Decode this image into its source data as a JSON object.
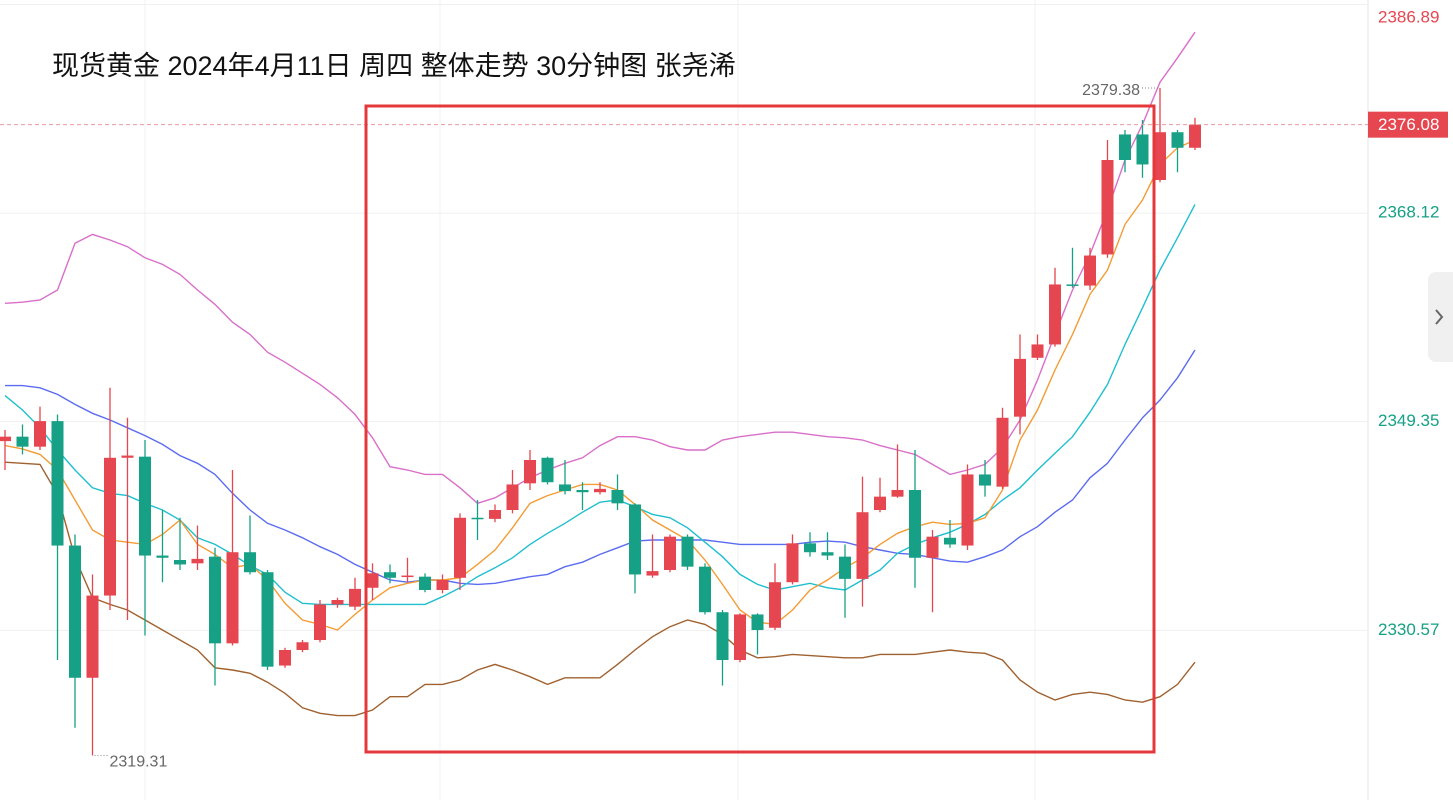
{
  "chart_data": {
    "type": "candlestick",
    "title": "现货黄金 2024年4月11日 周四  整体走势 30分钟图  张尧浠",
    "ylim": [
      2315.3,
      2387.3
    ],
    "yticks": [
      2330.57,
      2349.35,
      2368.12,
      2386.89
    ],
    "grid": true,
    "up_color": "#e5464f",
    "down_color": "#16a085",
    "open": [
      2347.6,
      2348.0,
      2347.1,
      2349.4,
      2338.2,
      2326.3,
      2333.7,
      2346.1,
      2346.2,
      2337.3,
      2336.9,
      2336.6,
      2337.2,
      2329.4,
      2337.6,
      2335.8,
      2327.4,
      2328.8,
      2329.7,
      2332.9,
      2332.7,
      2334.4,
      2335.8,
      2335.4,
      2335.4,
      2334.2,
      2335.3,
      2340.7,
      2340.6,
      2341.4,
      2343.8,
      2346.1,
      2343.7,
      2343.2,
      2343.0,
      2343.2,
      2341.9,
      2335.5,
      2336.0,
      2339.0,
      2336.3,
      2332.2,
      2327.9,
      2332.0,
      2330.8,
      2334.9,
      2338.4,
      2337.6,
      2337.2,
      2335.2,
      2341.4,
      2342.6,
      2343.2,
      2337.1,
      2338.9,
      2338.2,
      2344.6,
      2343.5,
      2349.8,
      2355.1,
      2356.3,
      2361.7,
      2361.6,
      2364.4,
      2375.2,
      2375.2,
      2371.1,
      2375.4,
      2374.0
    ],
    "high": [
      2348.6,
      2349.1,
      2350.7,
      2350.0,
      2339.2,
      2335.6,
      2352.4,
      2349.7,
      2347.7,
      2341.4,
      2340.7,
      2340.0,
      2338.0,
      2345.0,
      2340.9,
      2336.0,
      2329.0,
      2329.7,
      2333.3,
      2333.5,
      2335.3,
      2336.6,
      2336.5,
      2337.1,
      2335.7,
      2335.6,
      2341.1,
      2342.3,
      2341.9,
      2345.0,
      2346.8,
      2346.2,
      2345.9,
      2343.9,
      2343.9,
      2344.6,
      2342.0,
      2339.2,
      2339.2,
      2339.2,
      2336.6,
      2332.4,
      2332.1,
      2332.1,
      2336.6,
      2339.2,
      2339.4,
      2339.4,
      2338.3,
      2344.4,
      2344.3,
      2347.3,
      2346.8,
      2339.6,
      2340.5,
      2345.5,
      2345.9,
      2350.6,
      2357.2,
      2357.2,
      2363.2,
      2365.0,
      2365.0,
      2374.7,
      2375.6,
      2376.5,
      2379.38,
      2375.6,
      2376.7
    ],
    "low": [
      2345.0,
      2346.4,
      2346.8,
      2327.9,
      2321.8,
      2319.31,
      2332.4,
      2331.5,
      2330.1,
      2334.9,
      2336.0,
      2336.0,
      2325.6,
      2329.2,
      2335.6,
      2327.0,
      2327.2,
      2328.6,
      2329.5,
      2332.6,
      2332.4,
      2333.3,
      2334.8,
      2334.9,
      2334.0,
      2333.9,
      2334.2,
      2338.7,
      2340.3,
      2341.1,
      2343.2,
      2343.7,
      2342.8,
      2341.4,
      2342.8,
      2341.4,
      2333.9,
      2335.3,
      2335.8,
      2336.0,
      2332.0,
      2325.6,
      2327.7,
      2328.4,
      2330.6,
      2334.7,
      2337.2,
      2336.9,
      2331.7,
      2332.7,
      2341.2,
      2342.5,
      2334.4,
      2332.2,
      2338.0,
      2337.8,
      2342.6,
      2343.3,
      2348.2,
      2354.9,
      2356.1,
      2361.4,
      2361.2,
      2364.1,
      2371.8,
      2371.3,
      2370.9,
      2371.8,
      2373.8
    ],
    "close": [
      2348.0,
      2347.1,
      2349.4,
      2338.2,
      2326.3,
      2333.7,
      2346.1,
      2346.3,
      2337.3,
      2337.1,
      2336.5,
      2337.0,
      2329.4,
      2337.6,
      2335.8,
      2327.3,
      2328.8,
      2329.5,
      2332.9,
      2333.3,
      2334.3,
      2335.7,
      2335.3,
      2335.5,
      2334.2,
      2335.1,
      2340.7,
      2340.6,
      2341.4,
      2343.7,
      2345.9,
      2343.9,
      2343.1,
      2343.0,
      2343.3,
      2342.0,
      2335.6,
      2335.9,
      2339.0,
      2336.3,
      2332.2,
      2327.9,
      2332.0,
      2330.6,
      2334.9,
      2338.4,
      2337.6,
      2337.3,
      2335.2,
      2341.2,
      2342.6,
      2343.2,
      2337.1,
      2339.0,
      2338.3,
      2344.6,
      2343.6,
      2349.7,
      2355.0,
      2356.3,
      2361.7,
      2361.6,
      2364.3,
      2372.9,
      2372.9,
      2372.5,
      2375.4,
      2374.0,
      2376.08
    ],
    "lines": [
      {
        "color": "#5b6cf0",
        "values": [
          2352.6,
          2352.6,
          2352.4,
          2351.8,
          2350.9,
          2350.1,
          2349.5,
          2348.8,
          2348.1,
          2347.3,
          2346.3,
          2345.6,
          2344.6,
          2342.9,
          2341.4,
          2340.2,
          2339.6,
          2338.9,
          2338.1,
          2337.4,
          2336.5,
          2335.8,
          2335.1,
          2334.9,
          2335.1,
          2335.1,
          2334.8,
          2334.7,
          2334.8,
          2335.1,
          2335.4,
          2335.6,
          2336.3,
          2336.7,
          2337.4,
          2338.0,
          2338.6,
          2338.7,
          2338.7,
          2338.7,
          2338.7,
          2338.5,
          2338.3,
          2338.3,
          2338.3,
          2338.3,
          2338.5,
          2338.6,
          2338.5,
          2338.1,
          2337.8,
          2337.5,
          2337.4,
          2337.1,
          2336.8,
          2336.7,
          2337.2,
          2337.8,
          2339.0,
          2339.9,
          2341.2,
          2342.3,
          2344.3,
          2345.6,
          2347.7,
          2349.7,
          2351.3,
          2353.3,
          2355.8
        ]
      },
      {
        "color": "#1fbfcf",
        "values": [
          2351.7,
          2350.4,
          2348.8,
          2346.8,
          2345.0,
          2343.4,
          2342.9,
          2342.7,
          2342.0,
          2341.4,
          2340.5,
          2338.9,
          2338.3,
          2337.4,
          2336.4,
          2335.6,
          2334.0,
          2333.0,
          2332.9,
          2332.9,
          2332.9,
          2332.9,
          2332.9,
          2332.9,
          2332.9,
          2333.6,
          2334.4,
          2335.4,
          2336.2,
          2337.1,
          2338.3,
          2339.3,
          2340.2,
          2341.2,
          2342.1,
          2342.3,
          2341.7,
          2341.0,
          2340.7,
          2339.8,
          2338.5,
          2337.2,
          2335.6,
          2334.7,
          2334.2,
          2334.5,
          2334.8,
          2334.4,
          2334.2,
          2335.1,
          2336.0,
          2337.5,
          2338.3,
          2338.9,
          2339.4,
          2340.1,
          2341.0,
          2342.3,
          2343.4,
          2345.0,
          2346.5,
          2348.0,
          2350.2,
          2352.7,
          2356.3,
          2359.6,
          2363.0,
          2365.9,
          2368.9
        ]
      },
      {
        "color": "#f39c34",
        "values": [
          2347.2,
          2346.9,
          2346.4,
          2345.0,
          2342.3,
          2339.6,
          2338.7,
          2338.5,
          2338.3,
          2339.2,
          2340.5,
          2338.3,
          2337.4,
          2336.2,
          2336.5,
          2335.1,
          2333.0,
          2331.5,
          2331.1,
          2330.6,
          2332.0,
          2333.3,
          2334.4,
          2334.8,
          2335.1,
          2335.1,
          2335.3,
          2336.5,
          2337.8,
          2339.8,
          2342.0,
          2342.7,
          2343.2,
          2343.7,
          2343.7,
          2343.2,
          2341.9,
          2340.5,
          2339.6,
          2338.7,
          2336.9,
          2334.7,
          2332.4,
          2331.3,
          2331.1,
          2332.4,
          2334.2,
          2335.1,
          2336.2,
          2337.1,
          2338.3,
          2339.3,
          2339.9,
          2340.3,
          2340.1,
          2340.2,
          2340.7,
          2343.2,
          2347.7,
          2350.4,
          2354.0,
          2357.2,
          2360.8,
          2363.0,
          2367.1,
          2369.3,
          2372.5,
          2374.0,
          2374.7
        ]
      },
      {
        "color": "#d96fc9",
        "values": [
          2360.0,
          2360.1,
          2360.3,
          2361.2,
          2365.4,
          2366.2,
          2365.7,
          2365.1,
          2364.1,
          2363.5,
          2362.6,
          2361.2,
          2359.9,
          2358.3,
          2357.2,
          2355.6,
          2354.7,
          2353.7,
          2352.7,
          2351.5,
          2350.0,
          2347.9,
          2345.3,
          2345.0,
          2344.6,
          2344.6,
          2343.4,
          2342.0,
          2342.5,
          2343.4,
          2344.3,
          2345.0,
          2345.6,
          2346.1,
          2347.2,
          2348.0,
          2348.0,
          2347.7,
          2347.1,
          2346.8,
          2346.8,
          2347.7,
          2348.0,
          2348.2,
          2348.4,
          2348.4,
          2348.2,
          2348.0,
          2347.9,
          2347.7,
          2347.2,
          2346.8,
          2346.4,
          2345.5,
          2344.6,
          2345.0,
          2345.5,
          2347.0,
          2349.5,
          2353.1,
          2357.2,
          2361.2,
          2364.4,
          2368.4,
          2372.9,
          2376.1,
          2379.9,
          2382.1,
          2384.4
        ]
      },
      {
        "color": "#a0612f",
        "values": [
          2345.7,
          2345.6,
          2345.5,
          2342.8,
          2337.1,
          2333.5,
          2332.9,
          2332.4,
          2331.5,
          2330.6,
          2329.7,
          2328.8,
          2327.2,
          2327.0,
          2326.7,
          2325.9,
          2324.9,
          2323.6,
          2323.1,
          2322.9,
          2322.9,
          2323.4,
          2324.6,
          2324.6,
          2325.7,
          2325.7,
          2326.1,
          2327.0,
          2327.5,
          2327.0,
          2326.4,
          2325.7,
          2326.3,
          2326.3,
          2326.3,
          2327.5,
          2328.8,
          2330.0,
          2330.9,
          2331.5,
          2331.1,
          2330.2,
          2328.8,
          2328.1,
          2328.2,
          2328.4,
          2328.3,
          2328.2,
          2328.1,
          2328.1,
          2328.4,
          2328.4,
          2328.4,
          2328.6,
          2328.8,
          2328.6,
          2328.5,
          2327.9,
          2326.1,
          2325.0,
          2324.3,
          2324.8,
          2325.0,
          2324.8,
          2324.3,
          2324.1,
          2324.6,
          2325.7,
          2327.7
        ]
      }
    ]
  }
}
